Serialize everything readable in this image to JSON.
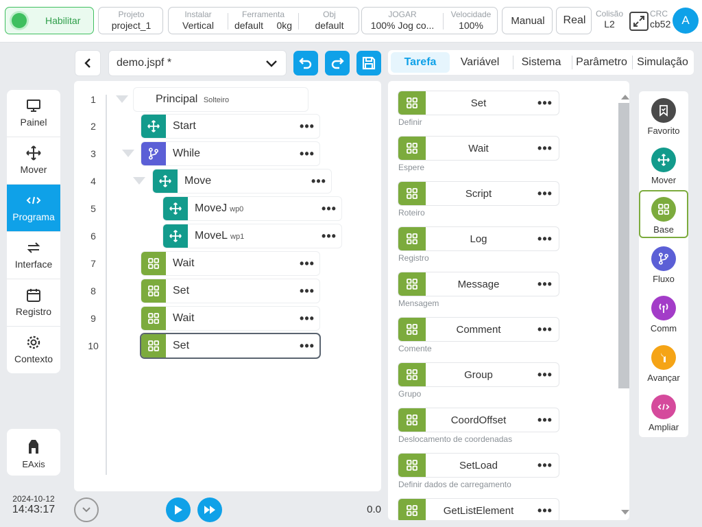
{
  "topbar": {
    "enable_label": "Habilitar",
    "project_label": "Projeto",
    "project_value": "project_1",
    "install_label": "Instalar",
    "install_value": "Vertical",
    "tool_label": "Ferramenta",
    "tool_value": "default",
    "tool_weight": "0kg",
    "obj_label": "Obj",
    "obj_value": "default",
    "jog_label": "JOGAR",
    "jog_value": "100%  Jog co...",
    "speed_label": "Velocidade",
    "speed_value": "100%",
    "manual_label": "Manual",
    "real_label": "Real",
    "collision_label": "Colisão",
    "collision_value": "L2",
    "crc_label": "CRC",
    "crc_value": "cb52",
    "avatar_letter": "A"
  },
  "nav": {
    "items": [
      {
        "label": "Painel",
        "icon": "monitor-icon"
      },
      {
        "label": "Mover",
        "icon": "move-icon"
      },
      {
        "label": "Programa",
        "icon": "code-icon"
      },
      {
        "label": "Interface",
        "icon": "swap-icon"
      },
      {
        "label": "Registro",
        "icon": "calendar-icon"
      },
      {
        "label": "Contexto",
        "icon": "gear-icon"
      }
    ],
    "active": "Programa",
    "eaxis_label": "EAxis",
    "date": "2024-10-12",
    "time": "14:43:17"
  },
  "file": {
    "name": "demo.jspf *"
  },
  "program": {
    "root_label": "Principal",
    "root_sub": "Solteiro",
    "line_numbers": [
      "1",
      "2",
      "3",
      "4",
      "5",
      "6",
      "7",
      "8",
      "9",
      "10"
    ],
    "nodes": [
      {
        "label": "Start",
        "sub": "",
        "icon": "move-icon",
        "color": "#139b8c"
      },
      {
        "label": "While",
        "sub": "",
        "icon": "branch-icon",
        "color": "#5b5fd6"
      },
      {
        "label": "Move",
        "sub": "",
        "icon": "move-icon",
        "color": "#139b8c"
      },
      {
        "label": "MoveJ",
        "sub": "wp0",
        "icon": "move-icon",
        "color": "#139b8c"
      },
      {
        "label": "MoveL",
        "sub": "wp1",
        "icon": "move-icon",
        "color": "#139b8c"
      },
      {
        "label": "Wait",
        "sub": "",
        "icon": "grid-icon",
        "color": "#7cab3d"
      },
      {
        "label": "Set",
        "sub": "",
        "icon": "grid-icon",
        "color": "#7cab3d"
      },
      {
        "label": "Wait",
        "sub": "",
        "icon": "grid-icon",
        "color": "#7cab3d"
      },
      {
        "label": "Set",
        "sub": "",
        "icon": "grid-icon",
        "color": "#7cab3d"
      }
    ],
    "run_value": "0.0"
  },
  "tabs": [
    "Tarefa",
    "Variável",
    "Sistema",
    "Parâmetro",
    "Simulação"
  ],
  "active_tab": "Tarefa",
  "palette": [
    {
      "label": "Set",
      "desc": "Definir"
    },
    {
      "label": "Wait",
      "desc": "Espere"
    },
    {
      "label": "Script",
      "desc": "Roteiro"
    },
    {
      "label": "Log",
      "desc": "Registro"
    },
    {
      "label": "Message",
      "desc": "Mensagem"
    },
    {
      "label": "Comment",
      "desc": "Comente"
    },
    {
      "label": "Group",
      "desc": "Grupo"
    },
    {
      "label": "CoordOffset",
      "desc": "Deslocamento de coordenadas"
    },
    {
      "label": "SetLoad",
      "desc": "Definir dados de carregamento"
    },
    {
      "label": "GetListElement",
      "desc": ""
    }
  ],
  "categories": [
    {
      "label": "Favorito",
      "icon": "bookmark-icon",
      "color": "#4a4a4a"
    },
    {
      "label": "Mover",
      "icon": "move-icon",
      "color": "#139b8c"
    },
    {
      "label": "Base",
      "icon": "grid-icon",
      "color": "#7cab3d"
    },
    {
      "label": "Fluxo",
      "icon": "branch-icon",
      "color": "#5b5fd6"
    },
    {
      "label": "Comm",
      "icon": "antenna-icon",
      "color": "#a33cc8"
    },
    {
      "label": "Avançar",
      "icon": "wrench-icon",
      "color": "#f5a416"
    },
    {
      "label": "Ampliar",
      "icon": "code-icon",
      "color": "#d54a9c"
    }
  ],
  "active_category": "Base",
  "colors": {
    "accent": "#0fa1e8",
    "base_green": "#7cab3d",
    "enable_green": "#3fbf5f"
  }
}
